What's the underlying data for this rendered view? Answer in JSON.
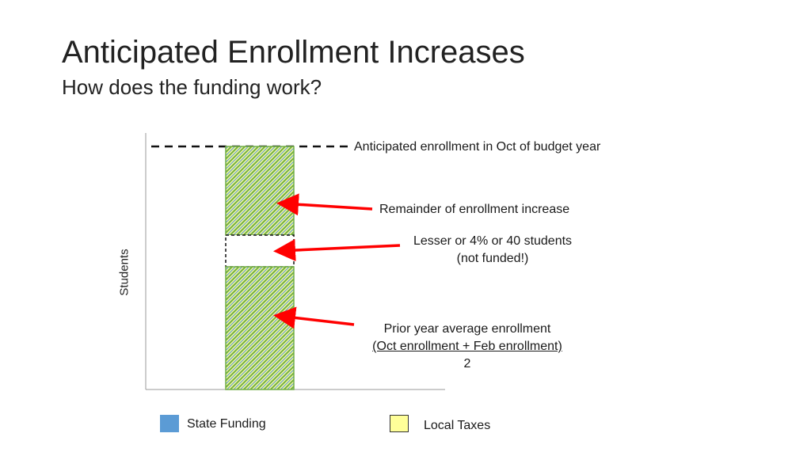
{
  "slide": {
    "title": "Anticipated Enrollment Increases",
    "subtitle": "How does the funding work?"
  },
  "diagram": {
    "y_axis_label": "Students",
    "annotations": {
      "anticipated": "Anticipated enrollment in Oct of budget year",
      "remainder": "Remainder of enrollment increase",
      "lesser_line1": "Lesser or 4% or 40 students",
      "lesser_line2": "(not funded!)",
      "prior_line1": "Prior year average enrollment",
      "prior_numerator": "(Oct enrollment + Feb enrollment)",
      "prior_denominator": "2"
    },
    "colors": {
      "state_funding": "#5b9bd5",
      "local_taxes": "#ffff99",
      "arrow": "#ff0000",
      "hatch_green": "#70ad47"
    }
  },
  "legend": {
    "items": [
      {
        "label": "State Funding",
        "color": "#5b9bd5",
        "border": "#5b9bd5"
      },
      {
        "label": "Local Taxes",
        "color": "#ffff99",
        "border": "#333333"
      }
    ]
  }
}
